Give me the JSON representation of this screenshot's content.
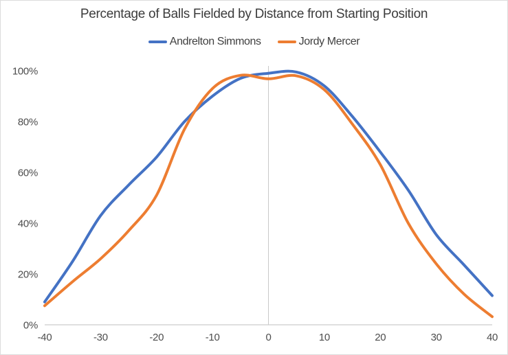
{
  "chart_data": {
    "type": "line",
    "title": "Percentage of Balls Fielded by Distance from Starting Position",
    "xlabel": "",
    "ylabel": "",
    "x": [
      -40,
      -35,
      -30,
      -25,
      -20,
      -15,
      -10,
      -5,
      0,
      5,
      10,
      15,
      20,
      25,
      30,
      35,
      40
    ],
    "series": [
      {
        "name": "Andrelton Simmons",
        "color": "#4472C4",
        "values": [
          9,
          25,
          43,
          55,
          66,
          80,
          90,
          97,
          99,
          99.5,
          94,
          82,
          68,
          53,
          35.5,
          23.5,
          11.5
        ]
      },
      {
        "name": "Jordy Mercer",
        "color": "#ED7D31",
        "values": [
          7.5,
          17,
          26,
          37,
          51,
          77,
          93,
          98.2,
          96.8,
          98,
          92.5,
          79,
          63,
          40,
          24,
          12,
          3.2
        ]
      }
    ],
    "x_ticks": [
      -40,
      -30,
      -20,
      -10,
      0,
      10,
      20,
      30,
      40
    ],
    "y_ticks": [
      0,
      20,
      40,
      60,
      80,
      100
    ],
    "y_tick_format": "percent",
    "y_tick_labels": [
      "0%",
      "20%",
      "40%",
      "60%",
      "80%",
      "100%"
    ],
    "xlim": [
      -40,
      40
    ],
    "ylim": [
      0,
      100
    ],
    "grid": "zero-vertical-line and baseline only",
    "legend_position": "top-center",
    "baseline_color": "#bfbfbf",
    "zero_line_color": "#c9c9c9",
    "title_color": "#3c3c3c",
    "label_color": "#4d4d4d",
    "background_color": "#ffffff"
  }
}
